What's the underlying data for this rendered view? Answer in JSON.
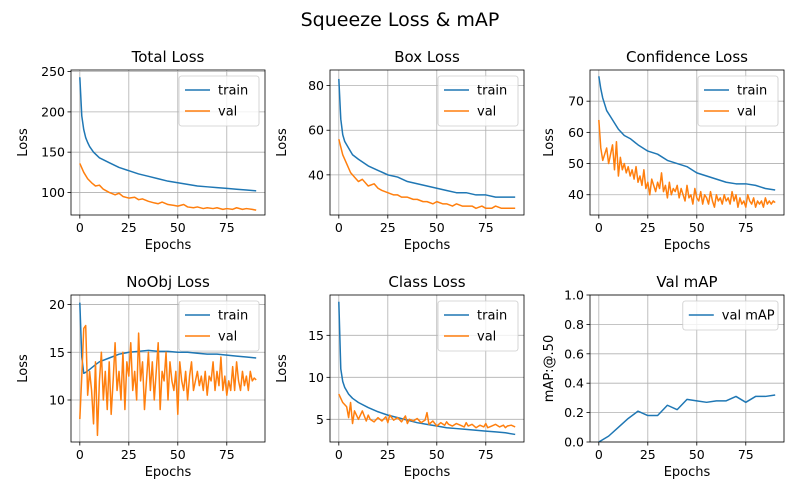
{
  "figure": {
    "title": "Squeeze Loss & mAP"
  },
  "colors": {
    "train": "#1f77b4",
    "val": "#ff7f0e"
  },
  "chart_data": [
    {
      "type": "line",
      "title": "Total Loss",
      "xlabel": "Epochs",
      "ylabel": "Loss",
      "xlim": [
        -4.5,
        94.5
      ],
      "ylim": [
        72,
        252
      ],
      "xticks": [
        0,
        25,
        50,
        75
      ],
      "yticks": [
        100,
        150,
        200,
        250
      ],
      "grid": true,
      "legend": "upper right",
      "series": [
        {
          "name": "train",
          "color": "#1f77b4",
          "x": [
            0,
            1,
            2,
            3,
            4,
            5,
            7,
            10,
            15,
            20,
            25,
            30,
            35,
            40,
            45,
            50,
            55,
            60,
            65,
            70,
            75,
            80,
            85,
            90
          ],
          "y": [
            243,
            195,
            178,
            168,
            162,
            157,
            150,
            143,
            137,
            131,
            127,
            123,
            120,
            117,
            114,
            112,
            110,
            108,
            107,
            106,
            105,
            104,
            103,
            102
          ]
        },
        {
          "name": "val",
          "color": "#ff7f0e",
          "x": [
            0,
            2,
            4,
            6,
            8,
            10,
            12,
            15,
            18,
            20,
            22,
            25,
            28,
            30,
            32,
            35,
            38,
            40,
            42,
            45,
            48,
            50,
            53,
            55,
            58,
            60,
            63,
            65,
            68,
            70,
            73,
            75,
            78,
            80,
            83,
            85,
            88,
            90
          ],
          "y": [
            136,
            125,
            117,
            112,
            108,
            109,
            104,
            100,
            97,
            99,
            95,
            93,
            94,
            91,
            92,
            89,
            87,
            86,
            88,
            85,
            84,
            83,
            85,
            82,
            81,
            82,
            80,
            81,
            80,
            81,
            79,
            80,
            79,
            81,
            79,
            80,
            79,
            78
          ]
        }
      ]
    },
    {
      "type": "line",
      "title": "Box Loss",
      "xlabel": "Epochs",
      "ylabel": "Loss",
      "xlim": [
        -4.5,
        94.5
      ],
      "ylim": [
        22,
        87
      ],
      "xticks": [
        0,
        25,
        50,
        75
      ],
      "yticks": [
        40,
        60,
        80
      ],
      "grid": true,
      "legend": "upper right",
      "series": [
        {
          "name": "train",
          "color": "#1f77b4",
          "x": [
            0,
            1,
            2,
            3,
            5,
            7,
            10,
            15,
            20,
            25,
            30,
            35,
            40,
            45,
            50,
            55,
            60,
            65,
            70,
            75,
            80,
            85,
            90
          ],
          "y": [
            83,
            65,
            58,
            55,
            52,
            49,
            47,
            44,
            42,
            40,
            39,
            37,
            36,
            35,
            34,
            33,
            32,
            32,
            31,
            31,
            30,
            30,
            30
          ]
        },
        {
          "name": "val",
          "color": "#ff7f0e",
          "x": [
            0,
            2,
            4,
            6,
            8,
            10,
            12,
            15,
            18,
            20,
            22,
            25,
            28,
            30,
            32,
            35,
            38,
            40,
            43,
            45,
            48,
            50,
            53,
            55,
            58,
            60,
            63,
            65,
            68,
            70,
            73,
            75,
            78,
            80,
            83,
            85,
            88,
            90
          ],
          "y": [
            56,
            49,
            45,
            41,
            39,
            37,
            38,
            35,
            36,
            34,
            33,
            32,
            31,
            31,
            30,
            30,
            29,
            29,
            28,
            28,
            27,
            28,
            27,
            27,
            26,
            27,
            26,
            26,
            26,
            25,
            26,
            25,
            25,
            26,
            25,
            25,
            25,
            25
          ]
        }
      ]
    },
    {
      "type": "line",
      "title": "Confidence Loss",
      "xlabel": "Epochs",
      "ylabel": "Loss",
      "xlim": [
        -4.5,
        94.5
      ],
      "ylim": [
        33.5,
        80
      ],
      "xticks": [
        0,
        25,
        50,
        75
      ],
      "yticks": [
        40,
        50,
        60,
        70
      ],
      "grid": true,
      "legend": "upper right",
      "series": [
        {
          "name": "train",
          "color": "#1f77b4",
          "x": [
            0,
            1,
            2,
            3,
            4,
            6,
            8,
            10,
            13,
            16,
            20,
            25,
            30,
            35,
            40,
            45,
            50,
            55,
            60,
            65,
            70,
            75,
            80,
            85,
            90
          ],
          "y": [
            78,
            74,
            71,
            69,
            67,
            65,
            63,
            61,
            59,
            58,
            56,
            54,
            53,
            51,
            50,
            49,
            47,
            46,
            45,
            44,
            43.5,
            43.5,
            43,
            42,
            41.5
          ]
        },
        {
          "name": "val",
          "color": "#ff7f0e",
          "x": [
            0,
            1,
            2,
            3,
            4,
            5,
            6,
            7,
            8,
            9,
            10,
            11,
            12,
            13,
            14,
            15,
            16,
            17,
            18,
            19,
            20,
            21,
            22,
            23,
            24,
            25,
            26,
            27,
            28,
            29,
            30,
            31,
            32,
            33,
            34,
            35,
            36,
            37,
            38,
            39,
            40,
            41,
            42,
            43,
            44,
            45,
            46,
            47,
            48,
            49,
            50,
            51,
            52,
            53,
            54,
            55,
            56,
            57,
            58,
            59,
            60,
            61,
            62,
            63,
            64,
            65,
            66,
            67,
            68,
            69,
            70,
            71,
            72,
            73,
            74,
            75,
            76,
            77,
            78,
            79,
            80,
            81,
            82,
            83,
            84,
            85,
            86,
            87,
            88,
            89,
            90
          ],
          "y": [
            64,
            55,
            51,
            53,
            55,
            50,
            53,
            56,
            48,
            57,
            46,
            52,
            48,
            50,
            47,
            49,
            46,
            48,
            45,
            49,
            44,
            46,
            43,
            48,
            42,
            44,
            40,
            45,
            43,
            41,
            44,
            42,
            47,
            41,
            43,
            39,
            44,
            40,
            42,
            41,
            43,
            39,
            42,
            40,
            38,
            43,
            39,
            40,
            37,
            42,
            39,
            38,
            41,
            37,
            40,
            39,
            37,
            41,
            38,
            36,
            40,
            38,
            39,
            37,
            40,
            38,
            39,
            37,
            41,
            38,
            40,
            36,
            39,
            37,
            38,
            36,
            40,
            38,
            37,
            39,
            36,
            38,
            37,
            38,
            36,
            39,
            37,
            38,
            37,
            38,
            37.5
          ]
        }
      ]
    },
    {
      "type": "line",
      "title": "NoObj Loss",
      "xlabel": "Epochs",
      "ylabel": "Loss",
      "xlim": [
        -4.5,
        94.5
      ],
      "ylim": [
        5.6,
        21
      ],
      "xticks": [
        0,
        25,
        50,
        75
      ],
      "yticks": [
        10,
        15,
        20
      ],
      "grid": true,
      "legend": "upper right",
      "series": [
        {
          "name": "train",
          "color": "#1f77b4",
          "x": [
            0,
            1,
            2,
            3,
            5,
            8,
            10,
            15,
            20,
            25,
            30,
            35,
            40,
            45,
            50,
            55,
            60,
            65,
            70,
            75,
            80,
            85,
            90
          ],
          "y": [
            20.2,
            14.5,
            12.8,
            12.9,
            13.2,
            13.7,
            14.0,
            14.4,
            14.8,
            15.0,
            15.1,
            15.2,
            15.1,
            15.1,
            15.0,
            15.0,
            14.9,
            14.8,
            14.8,
            14.7,
            14.6,
            14.5,
            14.4
          ]
        },
        {
          "name": "val",
          "color": "#ff7f0e",
          "x": [
            0,
            1,
            2,
            3,
            4,
            5,
            6,
            7,
            8,
            9,
            10,
            11,
            12,
            13,
            14,
            15,
            16,
            17,
            18,
            19,
            20,
            21,
            22,
            23,
            24,
            25,
            26,
            27,
            28,
            29,
            30,
            31,
            32,
            33,
            34,
            35,
            36,
            37,
            38,
            39,
            40,
            41,
            42,
            43,
            44,
            45,
            46,
            47,
            48,
            49,
            50,
            51,
            52,
            53,
            54,
            55,
            56,
            57,
            58,
            59,
            60,
            61,
            62,
            63,
            64,
            65,
            66,
            67,
            68,
            69,
            70,
            71,
            72,
            73,
            74,
            75,
            76,
            77,
            78,
            79,
            80,
            81,
            82,
            83,
            84,
            85,
            86,
            87,
            88,
            89,
            90
          ],
          "y": [
            8,
            12.5,
            17.5,
            17.8,
            10.5,
            13,
            11,
            7.5,
            14,
            6.3,
            12,
            15,
            10,
            13,
            9,
            14,
            8.5,
            12,
            16,
            11,
            13,
            10,
            15,
            9,
            14,
            12.5,
            16,
            11,
            13,
            10,
            17,
            12,
            14,
            9,
            12,
            15,
            11,
            14,
            10,
            13,
            16,
            9,
            13,
            12,
            15,
            10,
            14,
            12,
            11,
            13,
            8.5,
            14,
            12,
            11,
            13,
            10,
            12.5,
            14,
            11,
            12,
            13,
            11.5,
            12.5,
            11,
            13,
            10.5,
            12.5,
            12,
            14,
            11,
            13,
            11.5,
            14.5,
            11,
            12.5,
            10.5,
            12,
            11,
            13.5,
            11,
            14,
            12,
            11,
            13,
            11.5,
            12.5,
            11,
            13,
            12,
            12.3,
            12.1
          ]
        }
      ]
    },
    {
      "type": "line",
      "title": "Class Loss",
      "xlabel": "Epochs",
      "ylabel": "Loss",
      "xlim": [
        -4.5,
        94.5
      ],
      "ylim": [
        2.3,
        19.8
      ],
      "xticks": [
        0,
        25,
        50,
        75
      ],
      "yticks": [
        5,
        10,
        15
      ],
      "grid": true,
      "legend": "upper right",
      "series": [
        {
          "name": "train",
          "color": "#1f77b4",
          "x": [
            0,
            1,
            2,
            3,
            5,
            7,
            10,
            15,
            20,
            25,
            30,
            35,
            40,
            45,
            50,
            55,
            60,
            65,
            70,
            75,
            80,
            85,
            90
          ],
          "y": [
            19,
            11,
            9.5,
            8.8,
            8.0,
            7.5,
            7.0,
            6.4,
            5.9,
            5.5,
            5.2,
            4.9,
            4.6,
            4.4,
            4.2,
            4.0,
            3.9,
            3.8,
            3.7,
            3.6,
            3.5,
            3.4,
            3.2
          ]
        },
        {
          "name": "val",
          "color": "#ff7f0e",
          "x": [
            0,
            2,
            4,
            5,
            6,
            7,
            8,
            9,
            10,
            12,
            14,
            15,
            16,
            18,
            20,
            22,
            24,
            25,
            26,
            28,
            30,
            32,
            34,
            35,
            36,
            38,
            40,
            42,
            44,
            45,
            46,
            48,
            50,
            52,
            54,
            55,
            56,
            58,
            60,
            62,
            64,
            65,
            66,
            68,
            70,
            72,
            74,
            75,
            76,
            78,
            80,
            82,
            84,
            85,
            86,
            88,
            90
          ],
          "y": [
            8,
            7,
            6.5,
            5.2,
            7,
            4.5,
            6,
            5.5,
            5,
            6,
            4.8,
            5.5,
            5,
            4.7,
            5.2,
            4.8,
            5.3,
            4.6,
            5.5,
            4.9,
            5.2,
            4.7,
            5.4,
            4.5,
            5,
            4.8,
            5.1,
            4.6,
            4.9,
            5.8,
            4.4,
            4.8,
            4.2,
            4.6,
            4.3,
            4.7,
            4.4,
            4.2,
            4.5,
            4.3,
            4.1,
            4.6,
            4.2,
            4.4,
            4.0,
            4.3,
            4.1,
            4.5,
            4.0,
            4.2,
            4.4,
            4.1,
            4.3,
            4.0,
            4.2,
            4.3,
            4.1
          ]
        }
      ]
    },
    {
      "type": "line",
      "title": "Val mAP",
      "xlabel": "Epochs",
      "ylabel": "mAP:@.50",
      "xlim": [
        -4.5,
        94.5
      ],
      "ylim": [
        0.0,
        1.0
      ],
      "xticks": [
        0,
        25,
        50,
        75
      ],
      "yticks": [
        0.0,
        0.2,
        0.4,
        0.6,
        0.8,
        1.0
      ],
      "ytick_labels": [
        "0.0",
        "0.2",
        "0.4",
        "0.6",
        "0.8",
        "1.0"
      ],
      "grid": true,
      "legend": "upper right",
      "series": [
        {
          "name": "val mAP",
          "color": "#1f77b4",
          "x": [
            0,
            5,
            10,
            15,
            20,
            25,
            30,
            35,
            40,
            45,
            50,
            55,
            60,
            65,
            70,
            75,
            80,
            85,
            90
          ],
          "y": [
            0.0,
            0.04,
            0.1,
            0.16,
            0.21,
            0.18,
            0.18,
            0.25,
            0.22,
            0.29,
            0.28,
            0.27,
            0.28,
            0.28,
            0.31,
            0.27,
            0.31,
            0.31,
            0.32
          ]
        }
      ]
    }
  ]
}
